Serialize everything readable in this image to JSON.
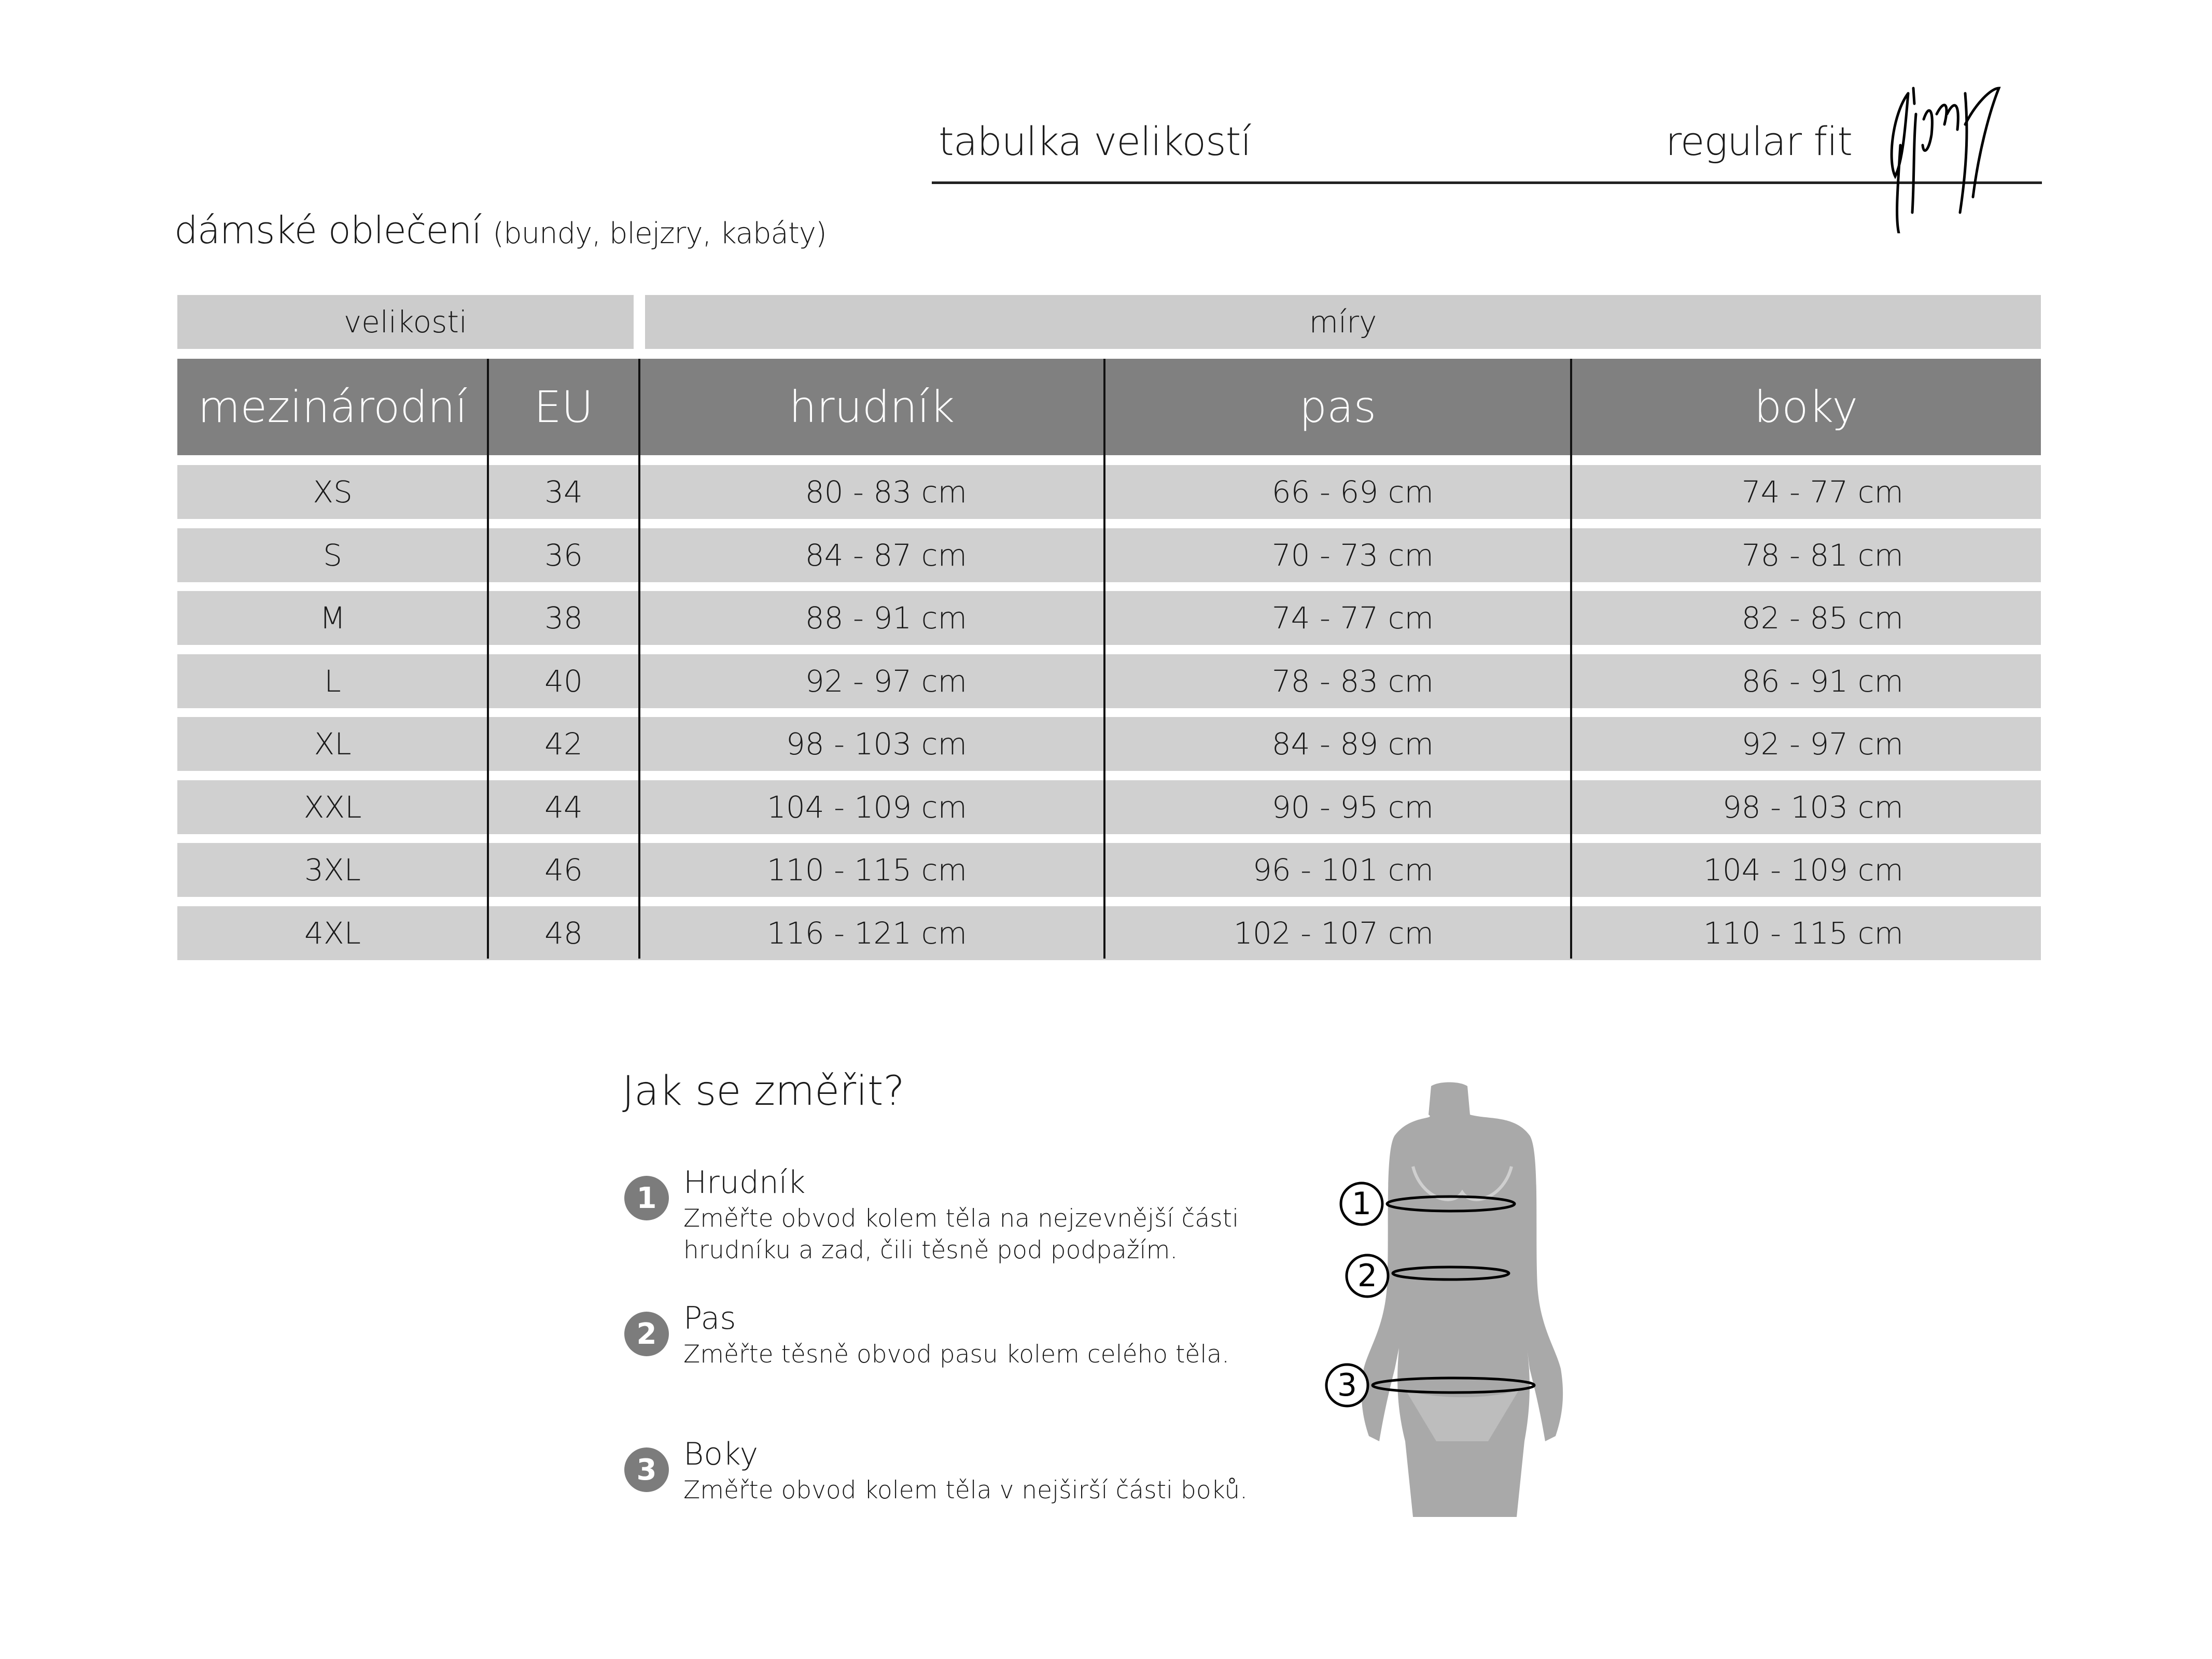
{
  "header": {
    "title": "tabulka velikostí",
    "fit": "regular fit",
    "logo_text": "Gipsy"
  },
  "subtitle": {
    "main": "dámské oblečení",
    "detail": "(bundy, blejzry, kabáty)"
  },
  "table": {
    "group_headers": [
      "velikosti",
      "míry"
    ],
    "columns": [
      "mezinárodní",
      "EU",
      "hrudník",
      "pas",
      "boky"
    ],
    "rows": [
      [
        "XS",
        "34",
        "80 - 83 cm",
        "66 - 69 cm",
        "74 - 77 cm"
      ],
      [
        "S",
        "36",
        "84 - 87 cm",
        "70 - 73 cm",
        "78 - 81 cm"
      ],
      [
        "M",
        "38",
        "88 - 91 cm",
        "74 - 77 cm",
        "82 - 85 cm"
      ],
      [
        "L",
        "40",
        "92 - 97 cm",
        "78 - 83 cm",
        "86 - 91 cm"
      ],
      [
        "XL",
        "42",
        "98 - 103 cm",
        "84 - 89 cm",
        "92 - 97 cm"
      ],
      [
        "XXL",
        "44",
        "104 - 109 cm",
        "90 - 95 cm",
        "98 - 103 cm"
      ],
      [
        "3XL",
        "46",
        "110 - 115 cm",
        "96 - 101 cm",
        "104 - 109 cm"
      ],
      [
        "4XL",
        "48",
        "116 - 121 cm",
        "102 - 107 cm",
        "110 - 115 cm"
      ]
    ],
    "header_color": "#808080",
    "row_color": "#d0d0d0"
  },
  "howto": {
    "title": "Jak se změřit?",
    "items": [
      {
        "num": "1",
        "title": "Hrudník",
        "desc": [
          "Změřte obvod kolem těla na nejzevnější části",
          "hrudníku a zad, čili těsně pod podpažím."
        ]
      },
      {
        "num": "2",
        "title": "Pas",
        "desc": [
          "Změřte těsně obvod pasu kolem celého těla."
        ]
      },
      {
        "num": "3",
        "title": "Boky",
        "desc": [
          "Změřte obvod kolem těla v nejširší části boků."
        ]
      }
    ],
    "figure_labels": [
      "1",
      "2",
      "3"
    ]
  }
}
